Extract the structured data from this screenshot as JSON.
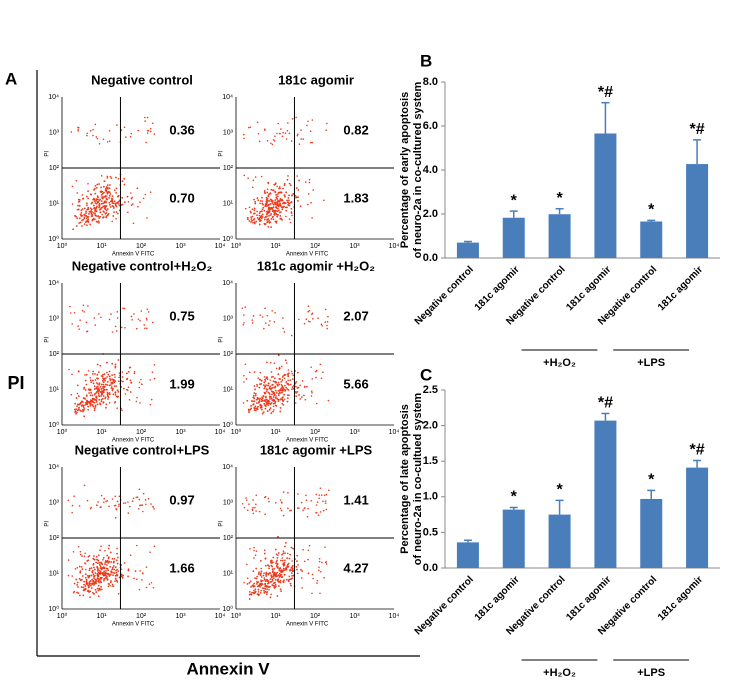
{
  "panel_a": {
    "label": "A",
    "y_label": "PI",
    "x_label": "Annexin V",
    "plot_x_label": "Annexin V FITC",
    "plot_y_label": "PI",
    "plot_ticks": [
      "10⁰",
      "10¹",
      "10²",
      "10³",
      "10⁴"
    ],
    "plots": [
      {
        "title": "Negative control",
        "upper_right": "0.36",
        "lower_right": "0.70"
      },
      {
        "title": "181c agomir",
        "upper_right": "0.82",
        "lower_right": "1.83"
      },
      {
        "title": "Negative control+H₂O₂",
        "upper_right": "0.75",
        "lower_right": "1.99"
      },
      {
        "title": "181c agomir +H₂O₂",
        "upper_right": "2.07",
        "lower_right": "5.66"
      },
      {
        "title": "Negative control+LPS",
        "upper_right": "0.97",
        "lower_right": "1.66"
      },
      {
        "title": "181c agomir +LPS",
        "upper_right": "1.41",
        "lower_right": "4.27"
      }
    ]
  },
  "chart_data": [
    {
      "type": "bar",
      "label": "B",
      "y_label": [
        "Percentage of early apoptosis",
        "of neuro-2a in co-cultured system"
      ],
      "categories": [
        "Negative control",
        "181c agomir",
        "Negative control",
        "181c agomir",
        "Negative control",
        "181c agomir"
      ],
      "category_groups": [
        null,
        null,
        "+H₂O₂",
        "+H₂O₂",
        "+LPS",
        "+LPS"
      ],
      "values": [
        0.7,
        1.83,
        1.99,
        5.66,
        1.66,
        4.27
      ],
      "errors": [
        0.05,
        0.3,
        0.25,
        1.4,
        0.05,
        1.1
      ],
      "annotations": [
        null,
        "*",
        "*",
        "*#",
        "*",
        "*#"
      ],
      "color": "#4a7ebb",
      "ylim": [
        0,
        8
      ],
      "yticks": [
        {
          "value": 0,
          "label": "0.0"
        },
        {
          "value": 2,
          "label": "2.0"
        },
        {
          "value": 4,
          "label": "4.0"
        },
        {
          "value": 6,
          "label": "6.0"
        },
        {
          "value": 8,
          "label": "8.0"
        }
      ]
    },
    {
      "type": "bar",
      "label": "C",
      "y_label": [
        "Percentage of late apoptosis",
        "of neuro-2a in co-cultued system"
      ],
      "categories": [
        "Negative control",
        "181c agomir",
        "Negative control",
        "181c agomir",
        "Negative control",
        "181c agomir"
      ],
      "category_groups": [
        null,
        null,
        "+H₂O₂",
        "+H₂O₂",
        "+LPS",
        "+LPS"
      ],
      "values": [
        0.36,
        0.82,
        0.75,
        2.07,
        0.97,
        1.41
      ],
      "errors": [
        0.03,
        0.03,
        0.2,
        0.1,
        0.12,
        0.1
      ],
      "annotations": [
        null,
        "*",
        "*",
        "*#",
        "*",
        "*#"
      ],
      "color": "#4a7ebb",
      "ylim": [
        0,
        2.5
      ],
      "yticks": [
        {
          "value": 0,
          "label": "0.0"
        },
        {
          "value": 0.5,
          "label": "0.5"
        },
        {
          "value": 1,
          "label": "1.0"
        },
        {
          "value": 1.5,
          "label": "1.5"
        },
        {
          "value": 2,
          "label": "2.0"
        },
        {
          "value": 2.5,
          "label": "2.5"
        }
      ]
    }
  ]
}
